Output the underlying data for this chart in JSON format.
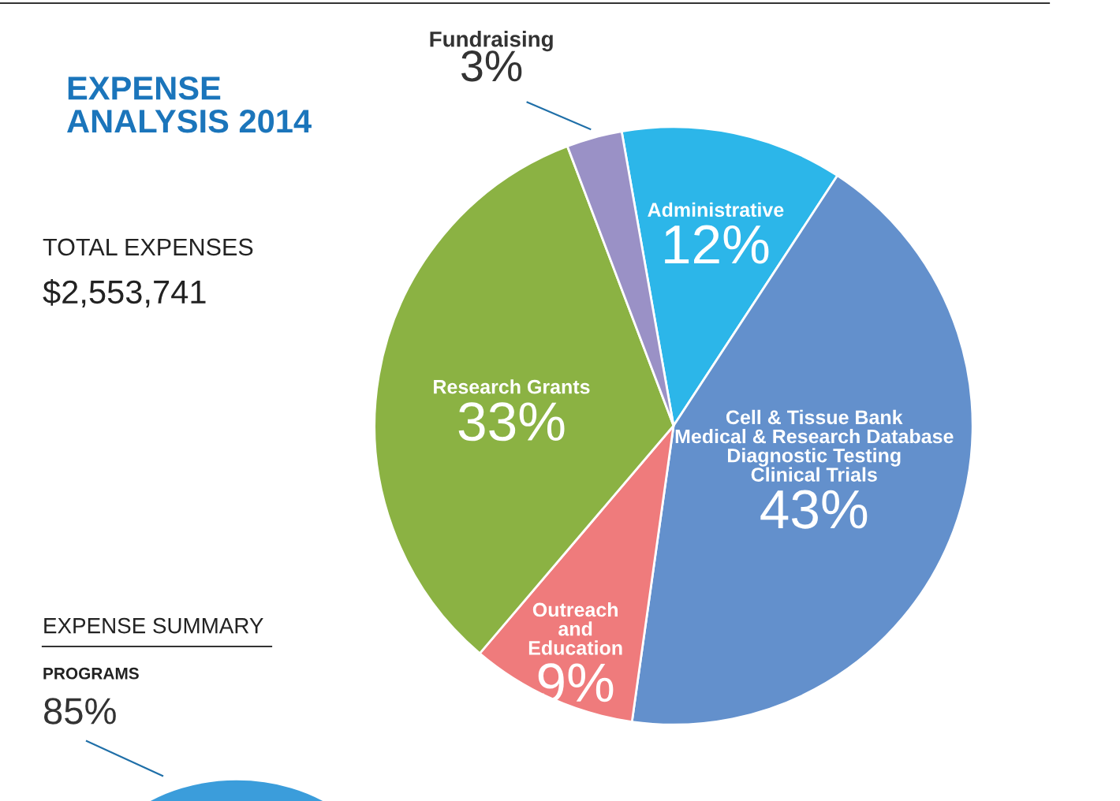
{
  "chart_data": {
    "type": "pie",
    "title": "EXPENSE\nANALYSIS 2014",
    "categories": [
      "Administrative",
      "Cell & Tissue Bank\nMedical & Research Database\nDiagnostic Testing\nClinical Trials",
      "Outreach\nand\nEducation",
      "Research Grants",
      "Fundraising"
    ],
    "values": [
      12,
      43,
      9,
      33,
      3
    ],
    "value_labels": [
      "12%",
      "43%",
      "9%",
      "33%",
      "3%"
    ],
    "colors": [
      "#2cb6e9",
      "#6390cc",
      "#ef7b7c",
      "#8bb243",
      "#9a91c6"
    ],
    "annotations": [
      "TOTAL EXPENSES",
      "$2,553,741",
      "EXPENSE SUMMARY",
      "PROGRAMS",
      "85%"
    ]
  }
}
